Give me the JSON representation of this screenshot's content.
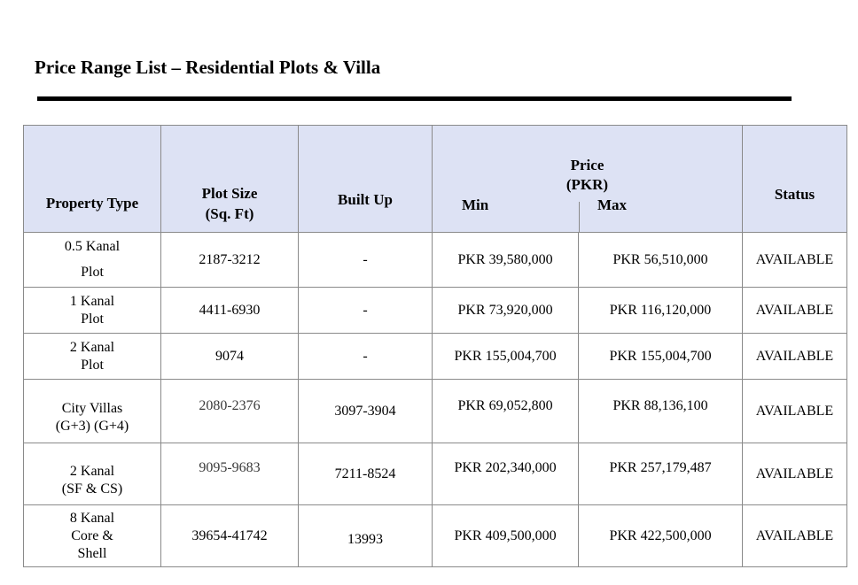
{
  "title": "Price Range List – Residential Plots & Villa",
  "table": {
    "headers": {
      "property_type": "Property Type",
      "plot_size_line1": "Plot Size",
      "plot_size_line2": "(Sq. Ft)",
      "built_up": "Built Up",
      "price_line1": "Price",
      "price_line2": "(PKR)",
      "min": "Min",
      "max": "Max",
      "status": "Status"
    },
    "rows": [
      {
        "type1": "0.5 Kanal",
        "type2": "Plot",
        "type3": "",
        "plot_size": "2187-3212",
        "built_up": "-",
        "min": "PKR 39,580,000",
        "max": "PKR 56,510,000",
        "status": "AVAILABLE"
      },
      {
        "type1": "1 Kanal",
        "type2": "Plot",
        "type3": "",
        "plot_size": "4411-6930",
        "built_up": "-",
        "min": "PKR 73,920,000",
        "max": "PKR 116,120,000",
        "status": "AVAILABLE"
      },
      {
        "type1": "2 Kanal",
        "type2": "Plot",
        "type3": "",
        "plot_size": "9074",
        "built_up": "-",
        "min": "PKR 155,004,700",
        "max": "PKR 155,004,700",
        "status": "AVAILABLE"
      },
      {
        "type1": "City Villas",
        "type2": "(G+3) (G+4)",
        "type3": "",
        "plot_size": "2080-2376",
        "built_up": "3097-3904",
        "min": "PKR 69,052,800",
        "max": "PKR 88,136,100",
        "status": "AVAILABLE"
      },
      {
        "type1": "2 Kanal",
        "type2": "(SF & CS)",
        "type3": "",
        "plot_size": "9095-9683",
        "built_up": "7211-8524",
        "min": "PKR 202,340,000",
        "max": "PKR 257,179,487",
        "status": "AVAILABLE"
      },
      {
        "type1": "8 Kanal",
        "type2": "Core &",
        "type3": "Shell",
        "plot_size": "39654-41742",
        "built_up": "13993",
        "min": "PKR 409,500,000",
        "max": "PKR 422,500,000",
        "status": "AVAILABLE"
      }
    ]
  }
}
